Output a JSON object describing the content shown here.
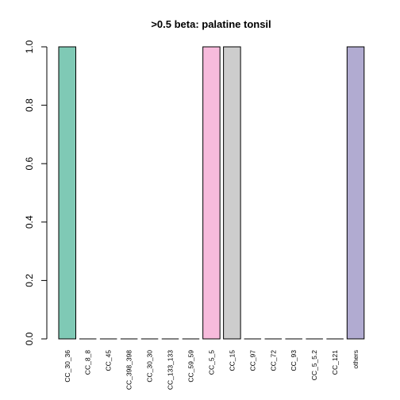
{
  "chart_data": {
    "type": "bar",
    "title": ">0.5 beta:  palatine tonsil",
    "xlabel": "",
    "ylabel": "",
    "ylim": [
      0,
      1
    ],
    "yticks": [
      "0.0",
      "0.2",
      "0.4",
      "0.6",
      "0.8",
      "1.0"
    ],
    "categories": [
      "CC_30_36",
      "CC_8_8",
      "CC_45",
      "CC_398_398",
      "CC_30_30",
      "CC_133_133",
      "CC_59_59",
      "CC_5_5",
      "CC_15",
      "CC_97",
      "CC_72",
      "CC_93",
      "CC_5_5.2",
      "CC_121",
      "others"
    ],
    "values": [
      1,
      0,
      0,
      0,
      0,
      0,
      0,
      1,
      1,
      0,
      0,
      0,
      0,
      0,
      1
    ],
    "colors": [
      "#7fc9b5",
      "#7fc9b5",
      "#7fc9b5",
      "#7fc9b5",
      "#7fc9b5",
      "#7fc9b5",
      "#7fc9b5",
      "#f7bbdc",
      "#cdcdcd",
      "#cdcdcd",
      "#cdcdcd",
      "#cdcdcd",
      "#cdcdcd",
      "#cdcdcd",
      "#b1abd1"
    ],
    "grid": false,
    "legend": "none"
  }
}
